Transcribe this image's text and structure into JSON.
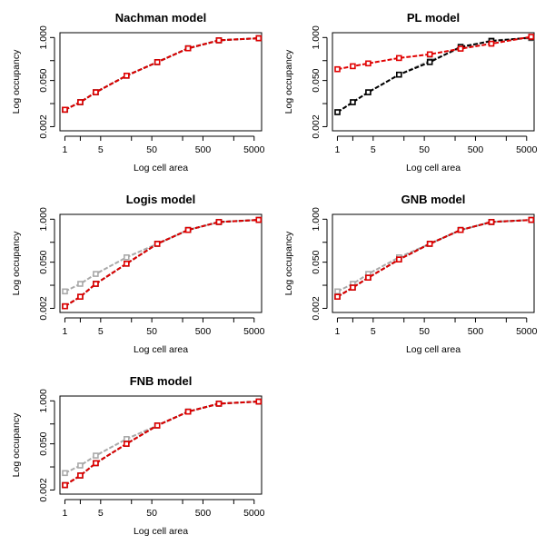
{
  "chart_data": [
    {
      "type": "line",
      "title": "Nachman model",
      "xlabel": "Log cell area",
      "ylabel": "Log occupancy",
      "xscale": "log",
      "yscale": "log",
      "xticks": [
        "1",
        "5",
        "50",
        "500",
        "5000"
      ],
      "yticks": [
        "0.002",
        "0.050",
        "1.000"
      ],
      "xlim": [
        0.8,
        7000
      ],
      "ylim": [
        0.0015,
        1.4
      ],
      "grid": false,
      "x": [
        1,
        2,
        4,
        16,
        64,
        256,
        1024,
        6144
      ],
      "series": [
        {
          "color": "#a9a9a9",
          "marker": "square",
          "values": [
            0.0065,
            0.011,
            0.022,
            0.07,
            0.18,
            0.47,
            0.82,
            0.95
          ]
        },
        {
          "color": "#000000",
          "marker": "square",
          "values": [
            0.0065,
            0.011,
            0.022,
            0.07,
            0.18,
            0.47,
            0.82,
            0.95
          ]
        },
        {
          "color": "#e00000",
          "marker": "square",
          "values": [
            0.0065,
            0.011,
            0.022,
            0.07,
            0.18,
            0.47,
            0.82,
            0.95
          ]
        }
      ]
    },
    {
      "type": "line",
      "title": "PL model",
      "xlabel": "Log cell area",
      "ylabel": "Log occupancy",
      "xscale": "log",
      "yscale": "log",
      "xticks": [
        "1",
        "5",
        "50",
        "500",
        "5000"
      ],
      "yticks": [
        "0.002",
        "0.050",
        "1.000"
      ],
      "xlim": [
        0.8,
        7000
      ],
      "ylim": [
        0.0015,
        1.4
      ],
      "grid": false,
      "x": [
        1,
        2,
        4,
        16,
        64,
        256,
        1024,
        6144
      ],
      "series": [
        {
          "color": "#a9a9a9",
          "marker": "square",
          "values": [
            0.0055,
            0.011,
            0.022,
            0.075,
            0.2,
            0.47,
            0.82,
            0.95
          ]
        },
        {
          "color": "#000000",
          "marker": "square",
          "values": [
            0.0055,
            0.011,
            0.022,
            0.075,
            0.18,
            0.52,
            0.78,
            1.0
          ]
        },
        {
          "color": "#e00000",
          "marker": "square",
          "values": [
            0.11,
            0.135,
            0.165,
            0.24,
            0.31,
            0.46,
            0.65,
            1.05
          ]
        }
      ]
    },
    {
      "type": "line",
      "title": "Logis model",
      "xlabel": "Log cell area",
      "ylabel": "Log occupancy",
      "xscale": "log",
      "yscale": "log",
      "xticks": [
        "1",
        "5",
        "50",
        "500",
        "5000"
      ],
      "yticks": [
        "0.002",
        "0.050",
        "1.000"
      ],
      "xlim": [
        0.8,
        7000
      ],
      "ylim": [
        0.0015,
        1.4
      ],
      "grid": false,
      "x": [
        1,
        2,
        4,
        16,
        64,
        256,
        1024,
        6144
      ],
      "series": [
        {
          "color": "#a9a9a9",
          "marker": "square",
          "values": [
            0.0065,
            0.011,
            0.022,
            0.07,
            0.18,
            0.47,
            0.82,
            0.95
          ]
        },
        {
          "color": "#000000",
          "marker": "square",
          "values": [
            0.0023,
            0.0045,
            0.011,
            0.045,
            0.18,
            0.47,
            0.82,
            0.95
          ]
        },
        {
          "color": "#e00000",
          "marker": "square",
          "values": [
            0.0023,
            0.0045,
            0.011,
            0.045,
            0.18,
            0.47,
            0.82,
            0.95
          ]
        }
      ]
    },
    {
      "type": "line",
      "title": "GNB model",
      "xlabel": "Log cell area",
      "ylabel": "Log occupancy",
      "xscale": "log",
      "yscale": "log",
      "xticks": [
        "1",
        "5",
        "50",
        "500",
        "5000"
      ],
      "yticks": [
        "0.002",
        "0.050",
        "1.000"
      ],
      "xlim": [
        0.8,
        7000
      ],
      "ylim": [
        0.0015,
        1.4
      ],
      "grid": false,
      "x": [
        1,
        2,
        4,
        16,
        64,
        256,
        1024,
        6144
      ],
      "series": [
        {
          "color": "#a9a9a9",
          "marker": "square",
          "values": [
            0.0065,
            0.011,
            0.022,
            0.07,
            0.18,
            0.47,
            0.82,
            0.95
          ]
        },
        {
          "color": "#000000",
          "marker": "square",
          "values": [
            0.0045,
            0.0085,
            0.017,
            0.06,
            0.18,
            0.47,
            0.82,
            0.95
          ]
        },
        {
          "color": "#e00000",
          "marker": "square",
          "values": [
            0.0045,
            0.0085,
            0.017,
            0.06,
            0.18,
            0.47,
            0.82,
            0.95
          ]
        }
      ]
    },
    {
      "type": "line",
      "title": "FNB model",
      "xlabel": "Log cell area",
      "ylabel": "Log occupancy",
      "xscale": "log",
      "yscale": "log",
      "xticks": [
        "1",
        "5",
        "50",
        "500",
        "5000"
      ],
      "yticks": [
        "0.002",
        "0.050",
        "1.000"
      ],
      "xlim": [
        0.8,
        7000
      ],
      "ylim": [
        0.0015,
        1.4
      ],
      "grid": false,
      "x": [
        1,
        2,
        4,
        16,
        64,
        256,
        1024,
        6144
      ],
      "series": [
        {
          "color": "#a9a9a9",
          "marker": "square",
          "values": [
            0.0065,
            0.011,
            0.022,
            0.07,
            0.18,
            0.47,
            0.82,
            0.95
          ]
        },
        {
          "color": "#000000",
          "marker": "square",
          "values": [
            0.0028,
            0.0055,
            0.013,
            0.05,
            0.18,
            0.47,
            0.82,
            0.95
          ]
        },
        {
          "color": "#e00000",
          "marker": "square",
          "values": [
            0.0028,
            0.0055,
            0.013,
            0.05,
            0.18,
            0.47,
            0.82,
            0.95
          ]
        }
      ]
    }
  ]
}
